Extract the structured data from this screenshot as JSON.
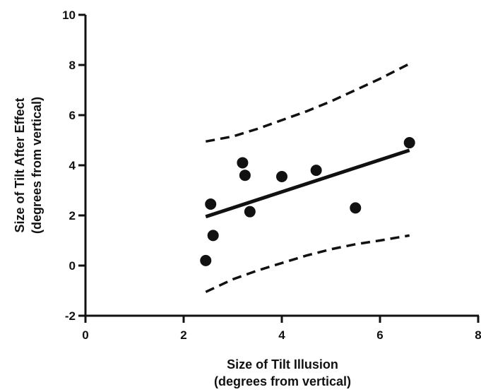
{
  "chart_data": {
    "type": "scatter",
    "xlabel": [
      "Size of Tilt Illusion",
      "(degrees from vertical)"
    ],
    "ylabel": [
      "Size of Tilt After Effect",
      "(degrees from vertical)"
    ],
    "xlim": [
      0,
      8
    ],
    "ylim": [
      -2,
      10
    ],
    "xticks": [
      0,
      2,
      4,
      6,
      8
    ],
    "yticks": [
      -2,
      0,
      2,
      4,
      6,
      8,
      10
    ],
    "grid": false,
    "points": [
      {
        "x": 2.45,
        "y": 0.2
      },
      {
        "x": 2.55,
        "y": 2.45
      },
      {
        "x": 2.6,
        "y": 1.2
      },
      {
        "x": 3.2,
        "y": 4.1
      },
      {
        "x": 3.25,
        "y": 3.6
      },
      {
        "x": 3.35,
        "y": 2.15
      },
      {
        "x": 4.0,
        "y": 3.55
      },
      {
        "x": 4.7,
        "y": 3.8
      },
      {
        "x": 5.5,
        "y": 2.3
      },
      {
        "x": 6.6,
        "y": 4.9
      }
    ],
    "regression_line": {
      "x": [
        2.45,
        6.6
      ],
      "y": [
        1.95,
        4.6
      ]
    },
    "confidence_band_upper": {
      "x": [
        2.45,
        3.0,
        3.5,
        4.0,
        4.5,
        5.0,
        5.5,
        6.0,
        6.6
      ],
      "y": [
        4.95,
        5.15,
        5.45,
        5.8,
        6.15,
        6.55,
        7.0,
        7.45,
        8.05
      ]
    },
    "confidence_band_lower": {
      "x": [
        2.45,
        3.0,
        3.5,
        4.0,
        4.5,
        5.0,
        5.5,
        6.0,
        6.6
      ],
      "y": [
        -1.05,
        -0.55,
        -0.2,
        0.1,
        0.4,
        0.65,
        0.85,
        1.0,
        1.2
      ]
    }
  }
}
